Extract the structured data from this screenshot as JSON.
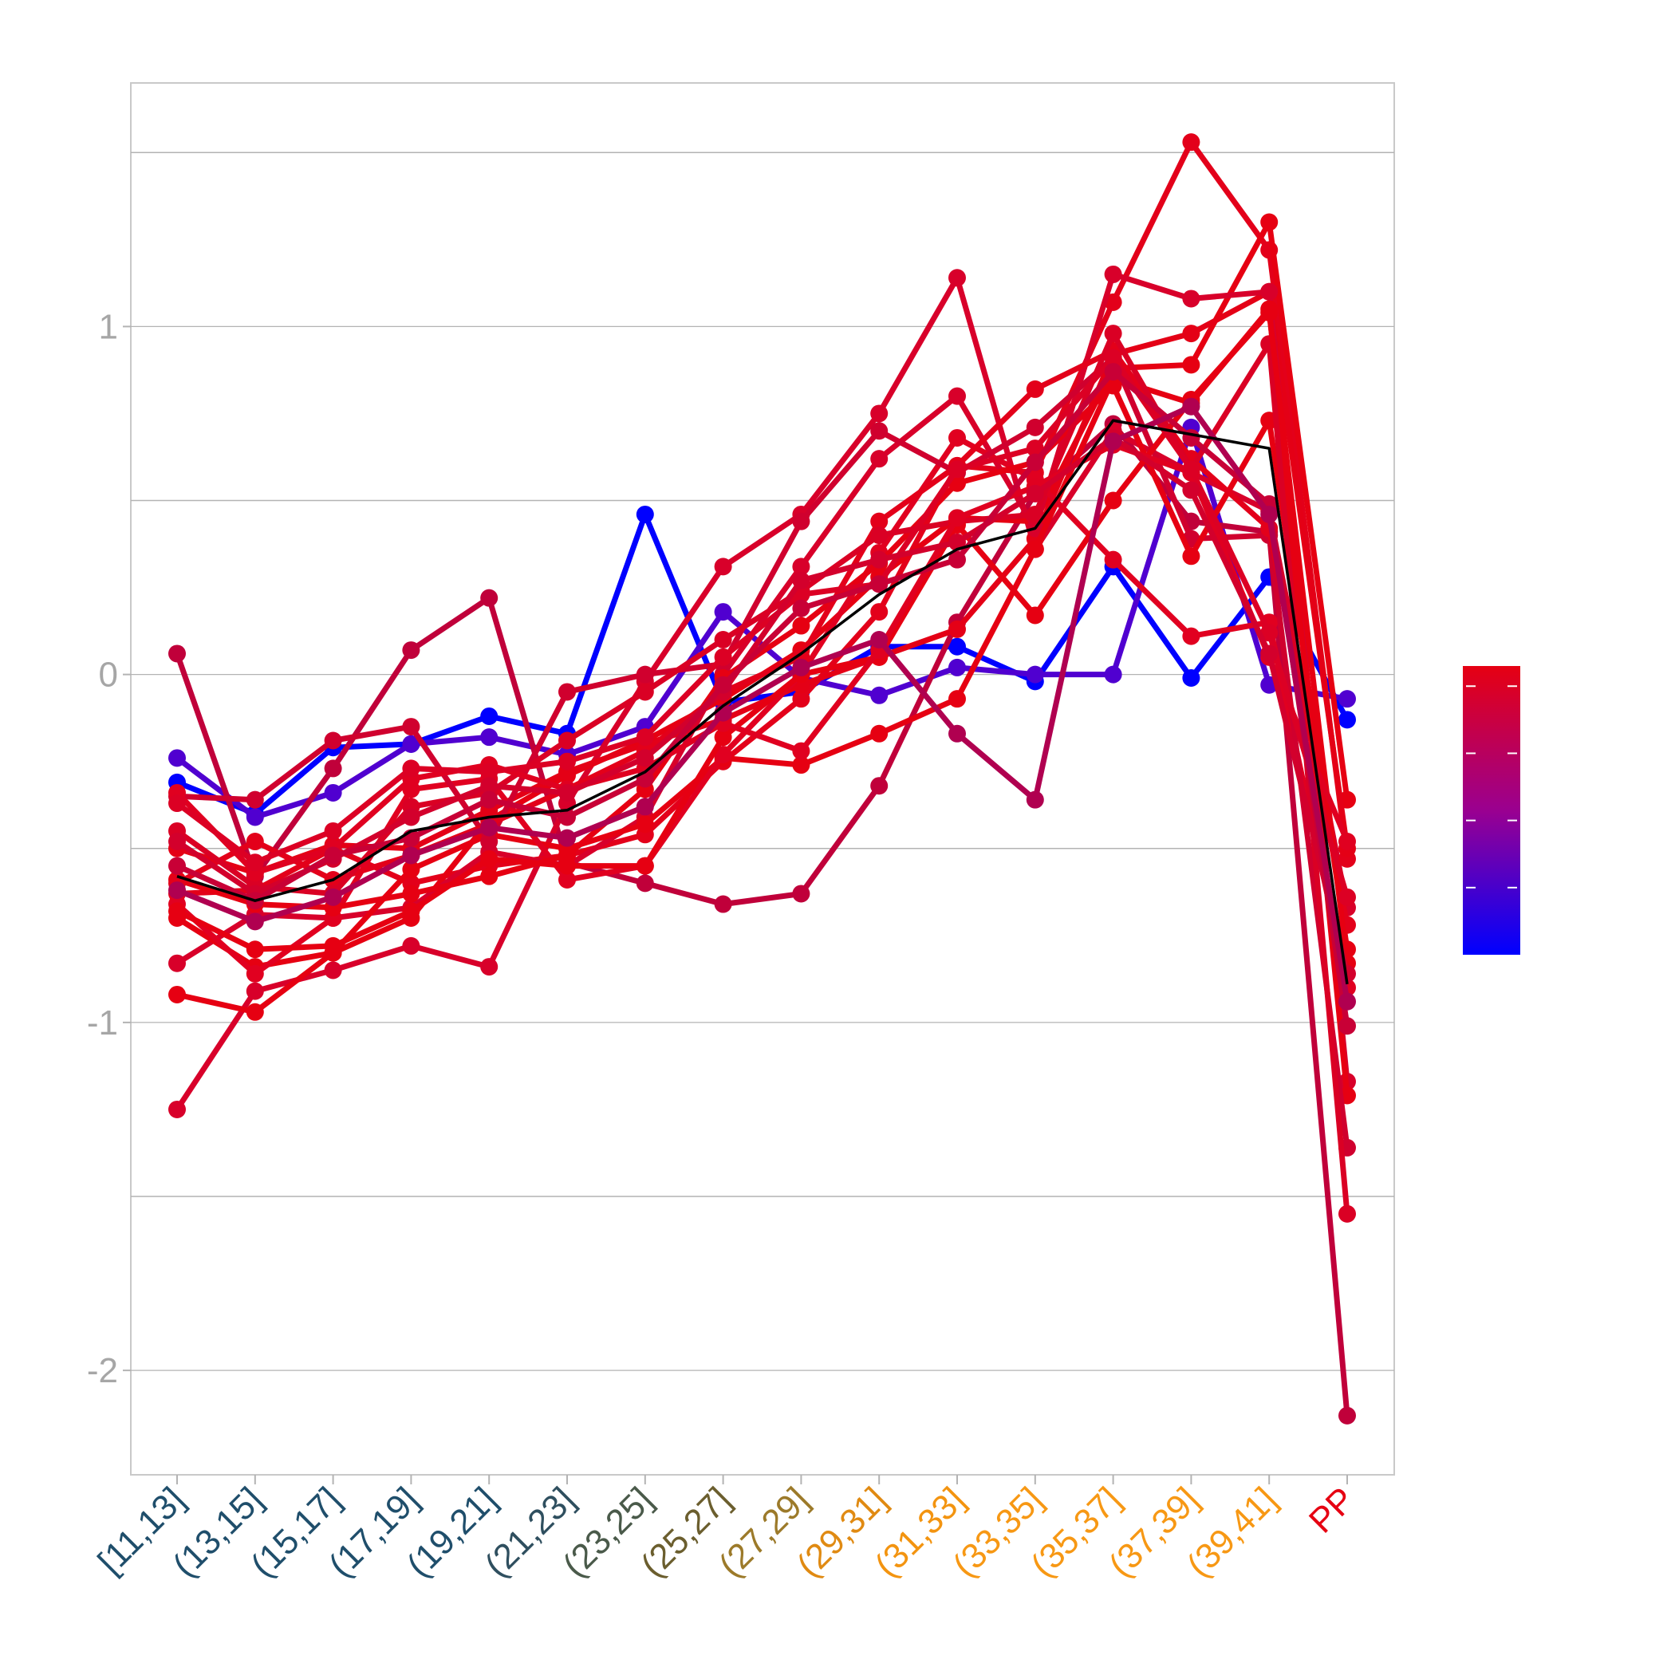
{
  "chart_data": {
    "type": "line",
    "title": "",
    "xlabel": "",
    "ylabel": "",
    "ylim": [
      -2.3,
      1.7
    ],
    "grid": true,
    "legend": "colorbar-right",
    "x": [
      "[11,13]",
      "(13,15]",
      "(15,17]",
      "(17,19]",
      "(19,21]",
      "(21,23]",
      "(23,25]",
      "(25,27]",
      "(27,29]",
      "(29,31]",
      "(31,33]",
      "(33,35]",
      "(35,37]",
      "(37,39]",
      "(39,41]",
      "PP"
    ],
    "x_label_colors": [
      "#1f4e6b",
      "#1f4e6b",
      "#1f4e6b",
      "#1f4e6b",
      "#1f4e6b",
      "#2f4f5f",
      "#4a5a4a",
      "#6b5e2e",
      "#9c7a2a",
      "#e08a12",
      "#f39410",
      "#f79814",
      "#f79814",
      "#f79814",
      "#f79814",
      "#e60012"
    ],
    "yticks": [
      {
        "value": -2,
        "label": "-2"
      },
      {
        "value": -1,
        "label": "-1"
      },
      {
        "value": 0,
        "label": "0"
      },
      {
        "value": 1,
        "label": "1"
      }
    ],
    "colorbar": {
      "low_color": "#0000ff",
      "mid_color": "#9a0090",
      "high_color": "#e60012"
    },
    "mean_line": {
      "color": "#000000",
      "values": [
        -0.58,
        -0.65,
        -0.59,
        -0.45,
        -0.41,
        -0.39,
        -0.28,
        -0.09,
        0.06,
        0.23,
        0.36,
        0.42,
        0.73,
        0.69,
        0.65,
        -0.89
      ]
    },
    "series": [
      {
        "color": "#0000ff",
        "values": [
          -0.31,
          -0.4,
          -0.21,
          -0.2,
          -0.12,
          -0.17,
          0.46,
          -0.08,
          -0.05,
          0.08,
          0.08,
          -0.02,
          0.31,
          -0.01,
          0.28,
          -0.13
        ]
      },
      {
        "color": "#5000d0",
        "values": [
          -0.24,
          -0.41,
          -0.34,
          -0.2,
          -0.18,
          -0.23,
          -0.15,
          0.18,
          -0.01,
          -0.06,
          0.02,
          0.0,
          0.0,
          0.71,
          -0.03,
          -0.07
        ]
      },
      {
        "color": "#c0003a",
        "values": [
          0.06,
          -0.58,
          -0.27,
          0.07,
          0.22,
          -0.54,
          -0.6,
          -0.66,
          -0.63,
          -0.32,
          0.15,
          0.52,
          0.72,
          0.44,
          0.41,
          -2.13
        ]
      },
      {
        "color": "#d8002a",
        "values": [
          -1.25,
          -0.91,
          -0.85,
          -0.78,
          -0.84,
          -0.37,
          -0.02,
          0.31,
          0.46,
          0.75,
          1.14,
          0.36,
          0.7,
          0.58,
          0.47,
          -0.67
        ]
      },
      {
        "color": "#e3001a",
        "values": [
          -0.63,
          -0.62,
          -0.5,
          -0.6,
          -0.55,
          -0.52,
          -0.46,
          -0.25,
          -0.07,
          0.18,
          0.6,
          0.58,
          1.07,
          1.53,
          1.22,
          -0.53
        ]
      },
      {
        "color": "#e60012",
        "values": [
          -0.92,
          -0.97,
          -0.8,
          -0.7,
          -0.42,
          -0.29,
          -0.19,
          -0.07,
          0.07,
          0.28,
          0.45,
          0.44,
          0.88,
          0.89,
          1.3,
          -0.36
        ]
      },
      {
        "color": "#e40016",
        "values": [
          -0.5,
          -0.57,
          -0.49,
          -0.5,
          -0.39,
          -0.28,
          -0.2,
          -0.13,
          -0.03,
          0.05,
          0.13,
          0.39,
          0.92,
          0.98,
          1.1,
          -0.5
        ]
      },
      {
        "color": "#d8002a",
        "values": [
          -0.83,
          -0.69,
          -0.7,
          -0.67,
          -0.51,
          -0.55,
          -0.41,
          0.0,
          0.31,
          0.62,
          0.8,
          0.42,
          1.15,
          1.08,
          1.1,
          -1.17
        ]
      },
      {
        "color": "#e60012",
        "values": [
          -0.7,
          -0.84,
          -0.8,
          -0.56,
          -0.46,
          -0.5,
          -0.43,
          -0.24,
          -0.26,
          -0.17,
          -0.07,
          0.36,
          0.85,
          0.78,
          1.05,
          -1.21
        ]
      },
      {
        "color": "#e10020",
        "values": [
          -0.66,
          -0.86,
          -0.7,
          -0.33,
          -0.3,
          -0.59,
          -0.55,
          -0.23,
          0.0,
          0.35,
          0.68,
          0.56,
          0.33,
          0.11,
          0.15,
          -0.9
        ]
      },
      {
        "color": "#d0002e",
        "values": [
          -0.35,
          -0.36,
          -0.19,
          -0.15,
          -0.48,
          -0.05,
          0.0,
          0.03,
          0.44,
          0.7,
          0.58,
          0.71,
          0.91,
          0.39,
          0.4,
          -1.36
        ]
      },
      {
        "color": "#e60012",
        "values": [
          -0.59,
          -0.66,
          -0.67,
          -0.63,
          -0.58,
          -0.52,
          -0.33,
          -0.01,
          0.14,
          0.32,
          0.55,
          0.61,
          0.83,
          0.34,
          0.73,
          -0.79
        ]
      },
      {
        "color": "#e3001a",
        "values": [
          -0.6,
          -0.48,
          -0.59,
          -0.52,
          -0.43,
          -0.33,
          -0.22,
          -0.05,
          0.05,
          0.44,
          0.6,
          0.82,
          0.93,
          0.62,
          0.42,
          -0.72
        ]
      },
      {
        "color": "#da0024",
        "values": [
          -0.45,
          -0.61,
          -0.63,
          -0.38,
          -0.34,
          -0.19,
          -0.05,
          0.1,
          0.24,
          0.4,
          0.44,
          0.46,
          0.98,
          0.59,
          0.95,
          -1.55
        ]
      },
      {
        "color": "#e60012",
        "values": [
          -0.68,
          -0.79,
          -0.78,
          -0.68,
          -0.53,
          -0.55,
          -0.55,
          -0.18,
          0.0,
          0.05,
          0.43,
          0.17,
          0.5,
          0.79,
          1.04,
          -0.83
        ]
      },
      {
        "color": "#e00020",
        "values": [
          -0.34,
          -0.57,
          -0.5,
          -0.3,
          -0.26,
          -0.33,
          -0.27,
          -0.14,
          -0.22,
          0.07,
          0.45,
          0.54,
          0.66,
          0.58,
          0.05,
          -0.48
        ]
      },
      {
        "color": "#dc0024",
        "values": [
          -0.37,
          -0.54,
          -0.45,
          -0.27,
          -0.28,
          -0.25,
          -0.18,
          0.05,
          0.23,
          0.26,
          0.59,
          0.65,
          0.91,
          0.59,
          0.12,
          -0.64
        ]
      },
      {
        "color": "#d3002c",
        "values": [
          -0.48,
          -0.63,
          -0.53,
          -0.41,
          -0.32,
          -0.34,
          -0.24,
          -0.05,
          0.27,
          0.33,
          0.38,
          0.52,
          0.68,
          0.53,
          0.06,
          -0.86
        ]
      },
      {
        "color": "#c80036",
        "values": [
          -0.55,
          -0.65,
          -0.52,
          -0.47,
          -0.36,
          -0.41,
          -0.3,
          -0.03,
          0.19,
          0.26,
          0.33,
          0.61,
          0.87,
          0.68,
          0.49,
          -1.01
        ]
      },
      {
        "color": "#b00050",
        "values": [
          -0.62,
          -0.71,
          -0.64,
          -0.52,
          -0.44,
          -0.47,
          -0.38,
          -0.11,
          0.02,
          0.1,
          -0.17,
          -0.36,
          0.67,
          0.77,
          0.46,
          -0.94
        ]
      }
    ]
  }
}
